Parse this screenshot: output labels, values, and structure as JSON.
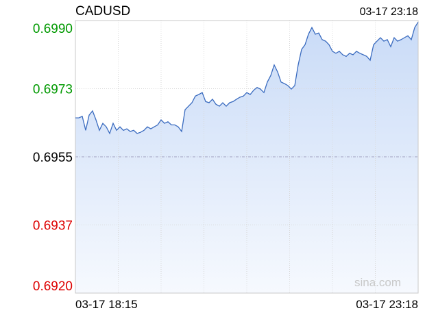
{
  "chart_data": {
    "type": "line",
    "title": "CADUSD",
    "timestamp": "03-17 23:18",
    "watermark": "sina.com",
    "x_labels": [
      "03-17 18:15",
      "03-17 23:18"
    ],
    "ylim": [
      0.692,
      0.699
    ],
    "yticks": [
      {
        "value": 0.699,
        "label": "0.6990"
      },
      {
        "value": 0.69725,
        "label": "0.6973"
      },
      {
        "value": 0.6955,
        "label": "0.6955"
      },
      {
        "value": 0.69375,
        "label": "0.6937"
      },
      {
        "value": 0.692,
        "label": "0.6920"
      }
    ],
    "ytick_colors": [
      "#009900",
      "#009900",
      "#000000",
      "#dd0000",
      "#dd0000"
    ],
    "color": "#3a6bbf",
    "grid": true,
    "values": [
      0.6965,
      0.6965,
      0.69654,
      0.69618,
      0.69657,
      0.69668,
      0.69645,
      0.69618,
      0.69636,
      0.69627,
      0.6961,
      0.69636,
      0.69618,
      0.69627,
      0.69618,
      0.69622,
      0.69615,
      0.69618,
      0.6961,
      0.69613,
      0.69618,
      0.69627,
      0.69622,
      0.69627,
      0.69632,
      0.69645,
      0.69636,
      0.6964,
      0.69632,
      0.69632,
      0.69627,
      0.69615,
      0.69671,
      0.6968,
      0.69689,
      0.69706,
      0.6971,
      0.69715,
      0.69692,
      0.69689,
      0.69698,
      0.69685,
      0.6968,
      0.69689,
      0.6968,
      0.69689,
      0.69692,
      0.69698,
      0.69703,
      0.69706,
      0.69715,
      0.6971,
      0.69721,
      0.69728,
      0.69724,
      0.69715,
      0.69742,
      0.69759,
      0.69786,
      0.69768,
      0.69742,
      0.69738,
      0.69733,
      0.69724,
      0.69733,
      0.69786,
      0.69826,
      0.69838,
      0.69865,
      0.69882,
      0.69865,
      0.69868,
      0.69851,
      0.69847,
      0.69838,
      0.69821,
      0.69816,
      0.69821,
      0.69812,
      0.69808,
      0.69816,
      0.69812,
      0.69821,
      0.69816,
      0.69812,
      0.69808,
      0.69798,
      0.69838,
      0.69847,
      0.69856,
      0.69847,
      0.69851,
      0.69833,
      0.69856,
      0.69847,
      0.69851,
      0.69856,
      0.69861,
      0.69851,
      0.69882,
      0.69896
    ]
  }
}
